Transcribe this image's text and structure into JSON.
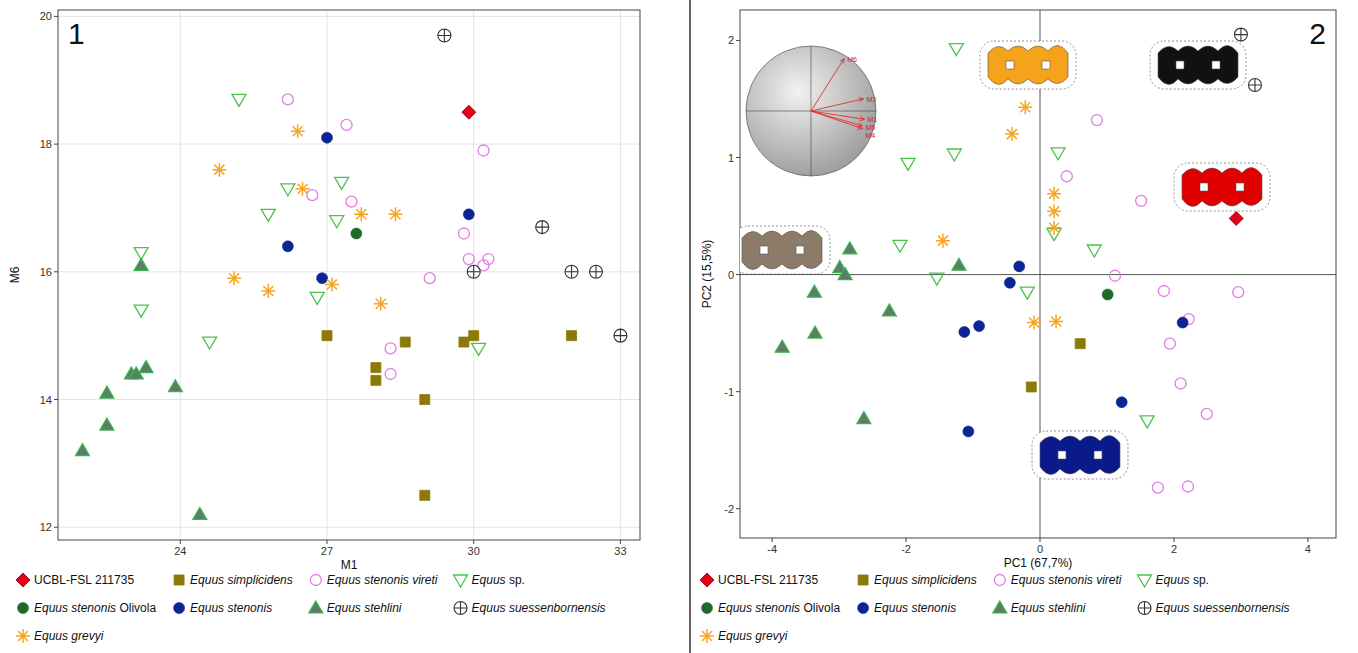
{
  "chart_data": [
    {
      "type": "scatter",
      "panel": "1",
      "x_label": "M1",
      "y_label": "M6",
      "xlim": [
        21.5,
        33.4
      ],
      "ylim": [
        11.8,
        20.1
      ],
      "xticks": [
        24,
        27,
        30,
        33
      ],
      "yticks": [
        12,
        14,
        16,
        18,
        20
      ],
      "grid": true,
      "legend": "bottom",
      "series": [
        {
          "name": "UCBL-FSL 211735",
          "color": "#e3001b",
          "marker": "diamond",
          "x": [
            29.9
          ],
          "values": [
            18.5
          ]
        },
        {
          "name": "Equus simplicidens",
          "color": "#8a7a08",
          "marker": "square",
          "x": [
            27.0,
            28.6,
            28.0,
            28.0,
            29.0,
            29.0,
            29.8,
            30.0,
            32.0
          ],
          "values": [
            15.0,
            14.9,
            14.5,
            14.3,
            14.0,
            12.5,
            14.9,
            15.0,
            15.0
          ]
        },
        {
          "name": "Equus stenonis vireti",
          "color": "#e07ee6",
          "marker": "circle-open",
          "x": [
            26.2,
            27.4,
            26.7,
            27.5,
            30.2,
            29.8,
            29.9,
            30.2,
            30.3,
            29.1,
            28.3,
            28.3
          ],
          "values": [
            18.7,
            18.3,
            17.2,
            17.1,
            17.9,
            16.6,
            16.2,
            16.1,
            16.2,
            15.9,
            14.8,
            14.4
          ]
        },
        {
          "name": "Equus sp.",
          "color": "#4cc24c",
          "marker": "triangle-down-open",
          "x": [
            25.2,
            26.2,
            27.3,
            25.8,
            27.2,
            23.2,
            23.2,
            26.8,
            24.6,
            30.1
          ],
          "values": [
            18.7,
            17.3,
            17.4,
            16.9,
            16.8,
            16.3,
            15.4,
            15.6,
            14.9,
            14.8
          ]
        },
        {
          "name": "Equus stenonis Olivola",
          "color": "#1d6b2c",
          "marker": "circle",
          "x": [
            27.6
          ],
          "values": [
            16.6
          ]
        },
        {
          "name": "Equus stenonis",
          "color": "#0b2596",
          "marker": "circle",
          "x": [
            27.0,
            29.9,
            26.2,
            26.9
          ],
          "values": [
            18.1,
            16.9,
            16.4,
            15.9
          ]
        },
        {
          "name": "Equus stehlini",
          "color": "#5e7d68",
          "marker": "triangle",
          "x": [
            22.0,
            22.5,
            22.5,
            23.0,
            23.1,
            23.3,
            23.9,
            24.4,
            23.2
          ],
          "values": [
            13.2,
            13.6,
            14.1,
            14.4,
            14.4,
            14.5,
            14.2,
            12.2,
            16.1
          ]
        },
        {
          "name": "Equus suessenbornensis",
          "color": "#333333",
          "marker": "circle-plus",
          "x": [
            29.4,
            31.4,
            30.0,
            32.0,
            32.5,
            33.0
          ],
          "values": [
            19.7,
            16.7,
            16.0,
            16.0,
            16.0,
            15.0
          ]
        },
        {
          "name": "Equus grevyi",
          "color": "#f5a623",
          "marker": "asterisk",
          "x": [
            24.8,
            26.4,
            26.5,
            27.7,
            28.4,
            25.1,
            25.8,
            27.1,
            28.1
          ],
          "values": [
            17.6,
            18.2,
            17.3,
            16.9,
            16.9,
            15.9,
            15.7,
            15.8,
            15.5
          ]
        }
      ]
    },
    {
      "type": "scatter",
      "panel": "2",
      "x_label": "PC1 (67,7%)",
      "y_label": "PC2 (15,5%)",
      "xlim": [
        -4.48,
        4.42
      ],
      "ylim": [
        -2.25,
        2.26
      ],
      "xticks": [
        -4,
        -2,
        0,
        2,
        4
      ],
      "yticks": [
        -2,
        -1,
        0,
        1,
        2
      ],
      "grid": false,
      "legend": "bottom",
      "reference_lines": {
        "x": [
          0
        ],
        "y": [
          0
        ]
      },
      "loadings": {
        "names": [
          "M6",
          "M3",
          "M1",
          "M5",
          "M4"
        ],
        "x": [
          0.6,
          0.95,
          0.97,
          0.93,
          0.93
        ],
        "y": [
          0.95,
          0.22,
          -0.15,
          -0.27,
          -0.32
        ]
      },
      "series": [
        {
          "name": "UCBL-FSL 211735",
          "color": "#e3001b",
          "marker": "diamond",
          "x": [
            2.93
          ],
          "values": [
            0.48
          ]
        },
        {
          "name": "Equus simplicidens",
          "color": "#8a7a08",
          "marker": "square",
          "x": [
            0.6,
            -0.13
          ],
          "values": [
            -0.59,
            -0.96
          ]
        },
        {
          "name": "Equus stenonis vireti",
          "color": "#e07ee6",
          "marker": "circle-open",
          "x": [
            0.85,
            0.4,
            1.51,
            1.12,
            1.85,
            2.96,
            2.22,
            1.94,
            2.1,
            2.49,
            1.76,
            2.21
          ],
          "values": [
            1.32,
            0.84,
            0.63,
            -0.01,
            -0.14,
            -0.15,
            -0.38,
            -0.59,
            -0.93,
            -1.19,
            -1.82,
            -1.81
          ]
        },
        {
          "name": "Equus sp.",
          "color": "#4cc24c",
          "marker": "triangle-down-open",
          "x": [
            -1.25,
            -1.97,
            -1.28,
            0.27,
            -2.09,
            0.21,
            0.81,
            -1.54,
            -0.19,
            1.6
          ],
          "values": [
            1.93,
            0.95,
            1.03,
            1.04,
            0.25,
            0.35,
            0.21,
            -0.03,
            -0.15,
            -1.25
          ]
        },
        {
          "name": "Equus stenonis Olivola",
          "color": "#1d6b2c",
          "marker": "circle",
          "x": [
            1.01
          ],
          "values": [
            -0.17
          ]
        },
        {
          "name": "Equus stenonis",
          "color": "#0b2596",
          "marker": "circle",
          "x": [
            -0.31,
            -0.45,
            -1.13,
            -0.91,
            -1.07,
            1.22,
            2.13
          ],
          "values": [
            0.07,
            -0.07,
            -0.49,
            -0.44,
            -1.34,
            -1.09,
            -0.41
          ]
        },
        {
          "name": "Equus stehlini",
          "color": "#5e7d68",
          "marker": "triangle",
          "x": [
            -2.84,
            -2.99,
            -2.91,
            -1.21,
            -3.37,
            -2.25,
            -3.36,
            -3.85,
            -2.63
          ],
          "values": [
            0.22,
            0.06,
            0.0,
            0.08,
            -0.15,
            -0.31,
            -0.5,
            -0.62,
            -1.23
          ]
        },
        {
          "name": "Equus suessenbornensis",
          "color": "#333333",
          "marker": "circle-plus",
          "x": [
            3.0,
            3.21
          ],
          "values": [
            2.05,
            1.62
          ]
        },
        {
          "name": "Equus grevyi",
          "color": "#f5a623",
          "marker": "asterisk",
          "x": [
            -0.22,
            -0.42,
            0.21,
            0.21,
            0.21,
            -1.45,
            -0.09,
            0.24
          ],
          "values": [
            1.43,
            1.2,
            0.69,
            0.54,
            0.4,
            0.29,
            -0.41,
            -0.4
          ]
        }
      ]
    }
  ]
}
